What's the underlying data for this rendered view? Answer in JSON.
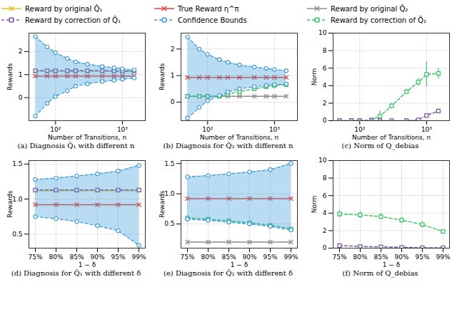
{
  "chart_data": [
    {
      "type": "line",
      "title": "(a) Diagnosis Q̂₁ with different n",
      "xlabel": "Number of Transitions, n",
      "ylabel": "Rewards",
      "log": "x",
      "grid": true,
      "x": [
        50,
        75,
        100,
        150,
        200,
        300,
        500,
        750,
        1000,
        1500
      ],
      "xlim": [
        40,
        2200
      ],
      "xticks": [
        {
          "value": 100,
          "label": "10²"
        },
        {
          "value": 1000,
          "label": "10³"
        }
      ],
      "ylim": [
        -1,
        2.8
      ],
      "yticks": [
        0,
        1,
        2
      ],
      "series": [
        {
          "name": "Reward by original Q̂₁",
          "color": "#e6c229",
          "marker": "x",
          "line_style": "solid",
          "values": [
            1.15,
            1.15,
            1.15,
            1.15,
            1.15,
            1.15,
            1.15,
            1.15,
            1.15,
            1.15
          ]
        },
        {
          "name": "Reward by correction of Q̂₁",
          "color": "#7b5aa6",
          "marker": "square",
          "line_style": "dashed",
          "values": [
            1.17,
            1.17,
            1.17,
            1.17,
            1.17,
            1.17,
            1.17,
            1.16,
            1.15,
            1.15
          ]
        },
        {
          "name": "True Reward η^π",
          "color": "#e8413c",
          "marker": "x",
          "line_style": "solid",
          "values": [
            0.93,
            0.93,
            0.93,
            0.93,
            0.93,
            0.93,
            0.93,
            0.93,
            0.93,
            0.93
          ]
        },
        {
          "name": "Confidence Bounds",
          "type": "band",
          "color": "#3a9ad9",
          "marker": "circle",
          "line_style": "dashed",
          "lower": [
            -0.8,
            -0.25,
            0.05,
            0.3,
            0.5,
            0.6,
            0.7,
            0.75,
            0.8,
            0.85
          ],
          "upper": [
            2.65,
            2.2,
            1.95,
            1.7,
            1.55,
            1.45,
            1.35,
            1.3,
            1.25,
            1.2
          ]
        }
      ]
    },
    {
      "type": "line",
      "title": "(b) Diagnosis for Q̂₂ with different n",
      "xlabel": "Number of Transitions, n",
      "ylabel": "Rewards",
      "log": "x",
      "grid": true,
      "x": [
        50,
        75,
        100,
        150,
        200,
        300,
        500,
        750,
        1000,
        1500
      ],
      "xlim": [
        40,
        2200
      ],
      "xticks": [
        {
          "value": 100,
          "label": "10²"
        },
        {
          "value": 1000,
          "label": "10³"
        }
      ],
      "ylim": [
        -0.7,
        2.6
      ],
      "yticks": [
        0,
        1,
        2
      ],
      "series": [
        {
          "name": "Reward by original Q̂₂",
          "color": "#8c8c8c",
          "marker": "x",
          "line_style": "solid",
          "values": [
            0.22,
            0.22,
            0.22,
            0.22,
            0.22,
            0.22,
            0.22,
            0.22,
            0.22,
            0.22
          ]
        },
        {
          "name": "Reward by correction of Q̂₂",
          "color": "#3cc46a",
          "marker": "square",
          "line_style": "dashed",
          "values": [
            0.22,
            0.22,
            0.22,
            0.22,
            0.3,
            0.4,
            0.5,
            0.58,
            0.62,
            0.66
          ]
        },
        {
          "name": "True Reward η^π",
          "color": "#e8413c",
          "marker": "x",
          "line_style": "solid",
          "values": [
            0.93,
            0.93,
            0.93,
            0.93,
            0.93,
            0.93,
            0.93,
            0.93,
            0.93,
            0.93
          ]
        },
        {
          "name": "Confidence Bounds",
          "type": "band",
          "color": "#3a9ad9",
          "marker": "circle",
          "line_style": "dashed",
          "lower": [
            -0.6,
            -0.2,
            0.05,
            0.25,
            0.38,
            0.5,
            0.58,
            0.63,
            0.66,
            0.68
          ],
          "upper": [
            2.45,
            2.0,
            1.8,
            1.6,
            1.5,
            1.4,
            1.32,
            1.27,
            1.23,
            1.18
          ]
        }
      ]
    },
    {
      "type": "line",
      "title": "(c) Norm of Q_debias",
      "xlabel": "Number of Transitions, n",
      "ylabel": "Norm",
      "log": "x",
      "grid": true,
      "x": [
        50,
        75,
        100,
        150,
        200,
        300,
        500,
        750,
        1000,
        1500
      ],
      "xlim": [
        40,
        2200
      ],
      "xticks": [
        {
          "value": 100,
          "label": "10²"
        },
        {
          "value": 1000,
          "label": "10³"
        }
      ],
      "ylim": [
        0,
        10
      ],
      "yticks": [
        0,
        2,
        4,
        6,
        8,
        10
      ],
      "series": [
        {
          "name": "Reward by correction of Q̂₂",
          "color": "#3cc46a",
          "marker": "square",
          "line_style": "dashed",
          "values": [
            0,
            0,
            0,
            0.1,
            0.5,
            1.7,
            3.3,
            4.4,
            5.3,
            5.4
          ],
          "errors": [
            0,
            0,
            0,
            0.1,
            0.6,
            0.3,
            0.3,
            0.4,
            1.4,
            0.6
          ]
        },
        {
          "name": "Reward by correction of Q̂₁",
          "color": "#7b5aa6",
          "marker": "square",
          "line_style": "dashed",
          "values": [
            0,
            0,
            0,
            0,
            0,
            0,
            0,
            0.1,
            0.6,
            1.1
          ],
          "errors": [
            0,
            0,
            0,
            0,
            0,
            0,
            0,
            0.1,
            0.1,
            0.2
          ]
        }
      ]
    },
    {
      "type": "line",
      "title": "(d) Diagnosis for Q̂₁ with different δ",
      "xlabel": "1 − δ",
      "ylabel": "Rewards",
      "grid": true,
      "categories": [
        "75%",
        "80%",
        "85%",
        "90%",
        "95%",
        "99%"
      ],
      "ylim": [
        0.3,
        1.55
      ],
      "yticks": [
        {
          "value": 0.5,
          "label": "0.5"
        },
        {
          "value": 1,
          "label": "1.0"
        },
        {
          "value": 1.5,
          "label": "1.5"
        }
      ],
      "series": [
        {
          "name": "Reward by original Q̂₁",
          "color": "#e6c229",
          "marker": "x",
          "line_style": "solid",
          "values": [
            1.12,
            1.12,
            1.12,
            1.12,
            1.12,
            1.12
          ]
        },
        {
          "name": "Reward by correction of Q̂₁",
          "color": "#7b5aa6",
          "marker": "square",
          "line_style": "dashed",
          "values": [
            1.13,
            1.13,
            1.13,
            1.13,
            1.13,
            1.13
          ]
        },
        {
          "name": "True Reward η^π",
          "color": "#e8413c",
          "marker": "x",
          "line_style": "solid",
          "values": [
            0.92,
            0.92,
            0.92,
            0.92,
            0.92,
            0.92
          ]
        },
        {
          "name": "Confidence Bounds",
          "type": "band",
          "color": "#3a9ad9",
          "marker": "circle",
          "line_style": "dashed",
          "lower": [
            0.75,
            0.72,
            0.68,
            0.62,
            0.55,
            0.34
          ],
          "upper": [
            1.28,
            1.3,
            1.33,
            1.36,
            1.4,
            1.48
          ]
        }
      ]
    },
    {
      "type": "line",
      "title": "(e) Diagnosis for Q̂₂ with different δ",
      "xlabel": "1 − δ",
      "ylabel": "Rewards",
      "grid": true,
      "categories": [
        "75%",
        "80%",
        "85%",
        "90%",
        "95%",
        "99%"
      ],
      "ylim": [
        0.1,
        1.55
      ],
      "yticks": [
        {
          "value": 0.5,
          "label": "0.5"
        },
        {
          "value": 1,
          "label": "1.0"
        },
        {
          "value": 1.5,
          "label": "1.5"
        }
      ],
      "series": [
        {
          "name": "Reward by original Q̂₂",
          "color": "#8c8c8c",
          "marker": "x",
          "line_style": "solid",
          "values": [
            0.2,
            0.2,
            0.2,
            0.2,
            0.2,
            0.2
          ]
        },
        {
          "name": "Reward by correction of Q̂₂",
          "color": "#3cc46a",
          "marker": "square",
          "line_style": "dashed",
          "values": [
            0.6,
            0.58,
            0.55,
            0.52,
            0.48,
            0.42
          ]
        },
        {
          "name": "True Reward η^π",
          "color": "#e8413c",
          "marker": "x",
          "line_style": "solid",
          "values": [
            0.92,
            0.92,
            0.92,
            0.92,
            0.92,
            0.92
          ]
        },
        {
          "name": "Confidence Bounds",
          "type": "band",
          "color": "#3a9ad9",
          "marker": "circle",
          "line_style": "dashed",
          "lower": [
            0.58,
            0.56,
            0.53,
            0.5,
            0.46,
            0.4
          ],
          "upper": [
            1.28,
            1.3,
            1.33,
            1.36,
            1.4,
            1.5
          ]
        }
      ]
    },
    {
      "type": "line",
      "title": "(f) Norm of Q_debias",
      "xlabel": "1 − δ",
      "ylabel": "Norm",
      "grid": true,
      "categories": [
        "75%",
        "80%",
        "85%",
        "90%",
        "95%",
        "99%"
      ],
      "ylim": [
        0,
        10
      ],
      "yticks": [
        0,
        2,
        4,
        6,
        8,
        10
      ],
      "series": [
        {
          "name": "Reward by correction of Q̂₂",
          "color": "#3cc46a",
          "marker": "square",
          "line_style": "dashed",
          "values": [
            3.9,
            3.8,
            3.6,
            3.2,
            2.7,
            1.9
          ],
          "errors": [
            0.4,
            0.4,
            0.35,
            0.3,
            0.3,
            0.2
          ]
        },
        {
          "name": "Reward by correction of Q̂₁",
          "color": "#7b5aa6",
          "marker": "square",
          "line_style": "dashed",
          "values": [
            0.3,
            0.2,
            0.15,
            0.1,
            0.05,
            0.05
          ],
          "errors": [
            0.2,
            0.15,
            0.15,
            0.1,
            0.1,
            0.1
          ]
        }
      ]
    }
  ]
}
